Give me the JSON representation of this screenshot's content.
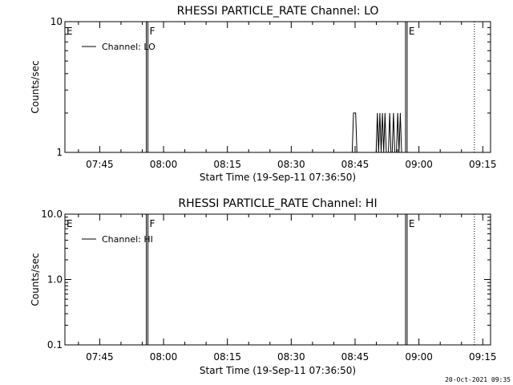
{
  "footer_timestamp": "20-Oct-2021 09:35",
  "chart_data": [
    {
      "type": "line",
      "title": "RHESSI PARTICLE_RATE Channel: LO",
      "xlabel": "Start Time (19-Sep-11 07:36:50)",
      "ylabel": "Counts/sec",
      "x_unit": "minutes since 07:36:50",
      "xlim": [
        0,
        100
      ],
      "x_ticks": [
        {
          "label": "07:45",
          "x": 8.17
        },
        {
          "label": "08:00",
          "x": 23.17
        },
        {
          "label": "08:15",
          "x": 38.17
        },
        {
          "label": "08:30",
          "x": 53.17
        },
        {
          "label": "08:45",
          "x": 68.17
        },
        {
          "label": "09:00",
          "x": 83.17
        },
        {
          "label": "09:15",
          "x": 98.17
        }
      ],
      "yscale": "log",
      "ylim": [
        1,
        10
      ],
      "y_ticks": [
        {
          "label": "1",
          "y": 1
        },
        {
          "label": "10",
          "y": 10
        }
      ],
      "legend": "top-left",
      "series": [
        {
          "name": "Channel: LO",
          "x": [
            0,
            67.5,
            67.8,
            68.0,
            68.3,
            68.6,
            73.1,
            73.4,
            73.7,
            74.0,
            74.3,
            74.6,
            74.9,
            75.2,
            75.5,
            76.0,
            76.3,
            76.6,
            76.9,
            77.2,
            77.5,
            77.9,
            78.2,
            78.5,
            78.8,
            79.1,
            79.4,
            100
          ],
          "y": [
            1,
            1,
            2,
            2,
            2,
            1,
            1,
            2,
            1,
            2,
            1,
            2,
            1,
            2,
            1,
            1,
            2,
            1,
            1,
            2,
            1,
            1,
            2,
            1,
            2,
            1,
            1,
            1
          ]
        }
      ],
      "events": [
        {
          "label": "E",
          "x": 0,
          "style": "solid"
        },
        {
          "label": "F",
          "x": 19.5,
          "style": "solid"
        },
        {
          "label": "E",
          "x": 80.4,
          "style": "solid"
        },
        {
          "label": "",
          "x": 96.2,
          "style": "dotted"
        }
      ]
    },
    {
      "type": "line",
      "title": "RHESSI PARTICLE_RATE Channel: HI",
      "xlabel": "Start Time (19-Sep-11 07:36:50)",
      "ylabel": "Counts/sec",
      "x_unit": "minutes since 07:36:50",
      "xlim": [
        0,
        100
      ],
      "x_ticks": [
        {
          "label": "07:45",
          "x": 8.17
        },
        {
          "label": "08:00",
          "x": 23.17
        },
        {
          "label": "08:15",
          "x": 38.17
        },
        {
          "label": "08:30",
          "x": 53.17
        },
        {
          "label": "08:45",
          "x": 68.17
        },
        {
          "label": "09:00",
          "x": 83.17
        },
        {
          "label": "09:15",
          "x": 98.17
        }
      ],
      "yscale": "log",
      "ylim": [
        0.1,
        10
      ],
      "y_ticks": [
        {
          "label": "0.1",
          "y": 0.1
        },
        {
          "label": "1.0",
          "y": 1
        },
        {
          "label": "10.0",
          "y": 10
        }
      ],
      "legend": "top-left",
      "series": [
        {
          "name": "Channel: HI",
          "x": [],
          "y": []
        }
      ],
      "events": [
        {
          "label": "E",
          "x": 0,
          "style": "solid"
        },
        {
          "label": "F",
          "x": 19.5,
          "style": "solid"
        },
        {
          "label": "E",
          "x": 80.4,
          "style": "solid"
        },
        {
          "label": "",
          "x": 96.2,
          "style": "dotted"
        }
      ]
    }
  ]
}
